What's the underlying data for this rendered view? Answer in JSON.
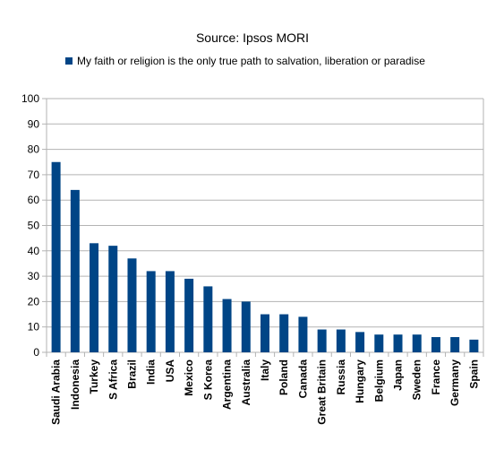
{
  "chart_data": {
    "type": "bar",
    "title": "Source: Ipsos MORI",
    "xlabel": "",
    "ylabel": "",
    "ylim": [
      0,
      100
    ],
    "yticks": [
      0,
      10,
      20,
      30,
      40,
      50,
      60,
      70,
      80,
      90,
      100
    ],
    "grid": true,
    "legend": "top",
    "bar_color": "#004586",
    "categories": [
      "Saudi Arabia",
      "Indonesia",
      "Turkey",
      "S Africa",
      "Brazil",
      "India",
      "USA",
      "Mexico",
      "S Korea",
      "Argentina",
      "Australia",
      "Italy",
      "Poland",
      "Canada",
      "Great Britain",
      "Russia",
      "Hungary",
      "Belgium",
      "Japan",
      "Sweden",
      "France",
      "Germany",
      "Spain"
    ],
    "series": [
      {
        "name": "My faith or religion is the only true path to salvation, liberation or paradise",
        "values": [
          75,
          64,
          43,
          42,
          37,
          32,
          32,
          29,
          26,
          21,
          20,
          15,
          15,
          14,
          9,
          9,
          8,
          7,
          7,
          7,
          6,
          6,
          5
        ]
      }
    ]
  }
}
